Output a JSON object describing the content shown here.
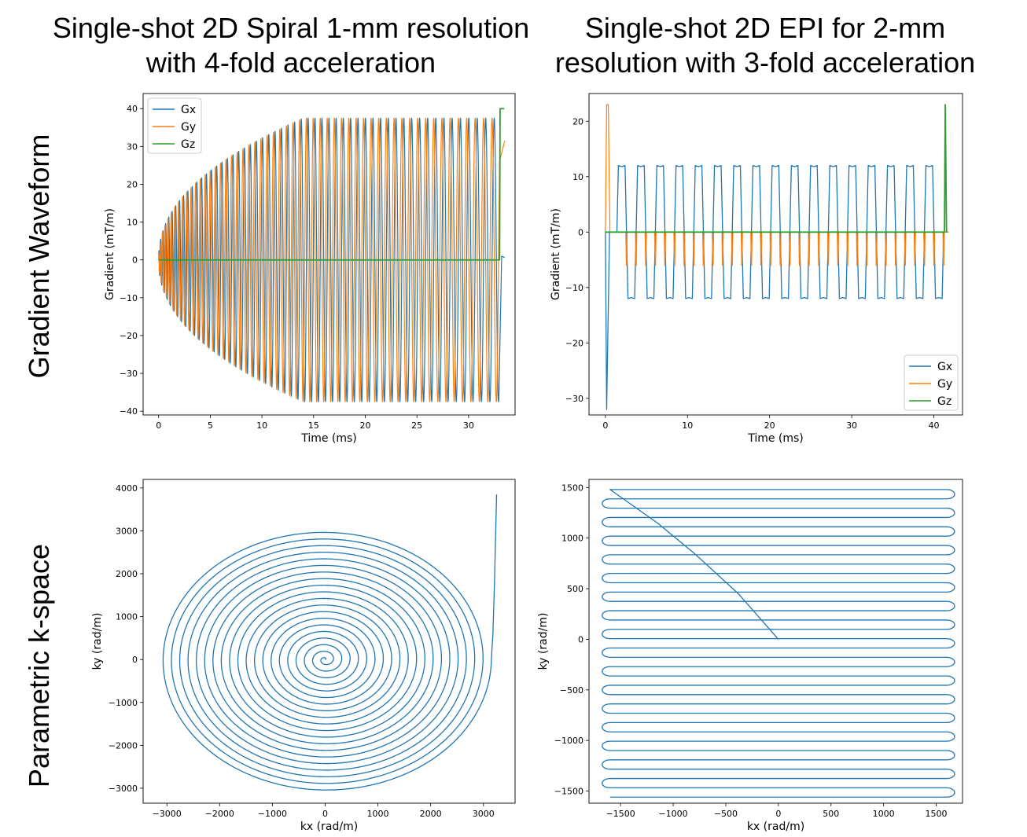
{
  "columns": {
    "left": "Single-shot 2D Spiral 1-mm resolution with 4-fold acceleration",
    "right": "Single-shot 2D EPI for 2-mm resolution with 3-fold acceleration"
  },
  "rows": {
    "top": "Gradient Waveform",
    "bottom": "Parametric k-space"
  },
  "colors": {
    "Gx": "#1f77b4",
    "Gy": "#ff7f0e",
    "Gz": "#2ca02c"
  },
  "chart_data": [
    {
      "id": "spiral-gradient",
      "type": "line",
      "title": "",
      "xlabel": "Time (ms)",
      "ylabel": "Gradient (mT/m)",
      "xlim": [
        -1.5,
        34.5
      ],
      "ylim": [
        -41,
        44
      ],
      "xticks": [
        0,
        5,
        10,
        15,
        20,
        25,
        30
      ],
      "yticks": [
        -40,
        -30,
        -20,
        -10,
        0,
        10,
        20,
        30,
        40
      ],
      "legend": {
        "placement": "top-left",
        "entries": [
          "Gx",
          "Gy",
          "Gz"
        ]
      },
      "series": [
        {
          "name": "Gx",
          "description": "spiral readout, amplitude rising from 0 to ~37.5 mT/m by ~14 ms then constant, ~55 cycles, ends ~33 ms"
        },
        {
          "name": "Gy",
          "description": "quadrature of Gx with same envelope, ends near 32 mT/m"
        },
        {
          "name": "Gz",
          "description": "0 mT/m throughout, step to 40 mT/m at ~33 ms"
        }
      ],
      "params": {
        "duration_ms": 33,
        "amplitude_max": 37.5,
        "ramp_ms": 14,
        "cycles": 55,
        "gz_final": 40
      }
    },
    {
      "id": "epi-gradient",
      "type": "line",
      "title": "",
      "xlabel": "Time (ms)",
      "ylabel": "Gradient (mT/m)",
      "xlim": [
        -2,
        43.5
      ],
      "ylim": [
        -33,
        25
      ],
      "xticks": [
        0,
        10,
        20,
        30,
        40
      ],
      "yticks": [
        -30,
        -20,
        -10,
        0,
        10,
        20
      ],
      "legend": {
        "placement": "bottom-right",
        "entries": [
          "Gx",
          "Gy",
          "Gz"
        ]
      },
      "series": [
        {
          "name": "Gx",
          "description": "pre-phaser spike to -32 mT/m, then trapezoidal readout alternating +12/-12 mT/m, 17 positive lobes"
        },
        {
          "name": "Gy",
          "description": "pre-phaser spike to 23 mT/m, then blips between 0 and -6 mT/m"
        },
        {
          "name": "Gz",
          "description": "0 mT/m, spike to 23 mT/m at ~41.5 ms"
        }
      ],
      "params": {
        "readout_amp": 12,
        "prephaser_x": -32,
        "prephaser_y": 23,
        "blip_y": -6,
        "gz_final": 23,
        "lines": 34,
        "readout_start_ms": 1.4,
        "readout_end_ms": 41.2
      }
    },
    {
      "id": "spiral-kspace",
      "type": "line",
      "title": "",
      "xlabel": "kx (rad/m)",
      "ylabel": "ky (rad/m)",
      "xlim": [
        -3450,
        3600
      ],
      "ylim": [
        -3350,
        4200
      ],
      "xticks": [
        -3000,
        -2000,
        -1000,
        0,
        1000,
        2000,
        3000
      ],
      "yticks": [
        -3000,
        -2000,
        -1000,
        0,
        1000,
        2000,
        3000,
        4000
      ],
      "series": [
        {
          "name": "k",
          "description": "Archimedean spiral of ~20 turns out to radius ~3100 rad/m (ellipse: 3150 in x, 3080 in y), then rises to (3250, 3850)"
        }
      ],
      "params": {
        "turns": 20,
        "rx": 3150,
        "ry": 3080,
        "end_point": [
          3250,
          3850
        ]
      }
    },
    {
      "id": "epi-kspace",
      "type": "line",
      "title": "",
      "xlabel": "kx (rad/m)",
      "ylabel": "ky (rad/m)",
      "xlim": [
        -1800,
        1750
      ],
      "ylim": [
        -1620,
        1580
      ],
      "xticks": [
        -1500,
        -1000,
        -500,
        0,
        500,
        1000,
        1500
      ],
      "yticks": [
        -1500,
        -1000,
        -500,
        0,
        500,
        1000,
        1500
      ],
      "series": [
        {
          "name": "k",
          "description": "pre-phaser diagonal from (0,0) to (-1600,1480), then raster of horizontal lines with rounded turns down to ky=-1560"
        }
      ],
      "params": {
        "kx_min": -1600,
        "kx_max": 1600,
        "ky_top": 1480,
        "ky_bottom": -1560,
        "lines": 34
      }
    }
  ]
}
